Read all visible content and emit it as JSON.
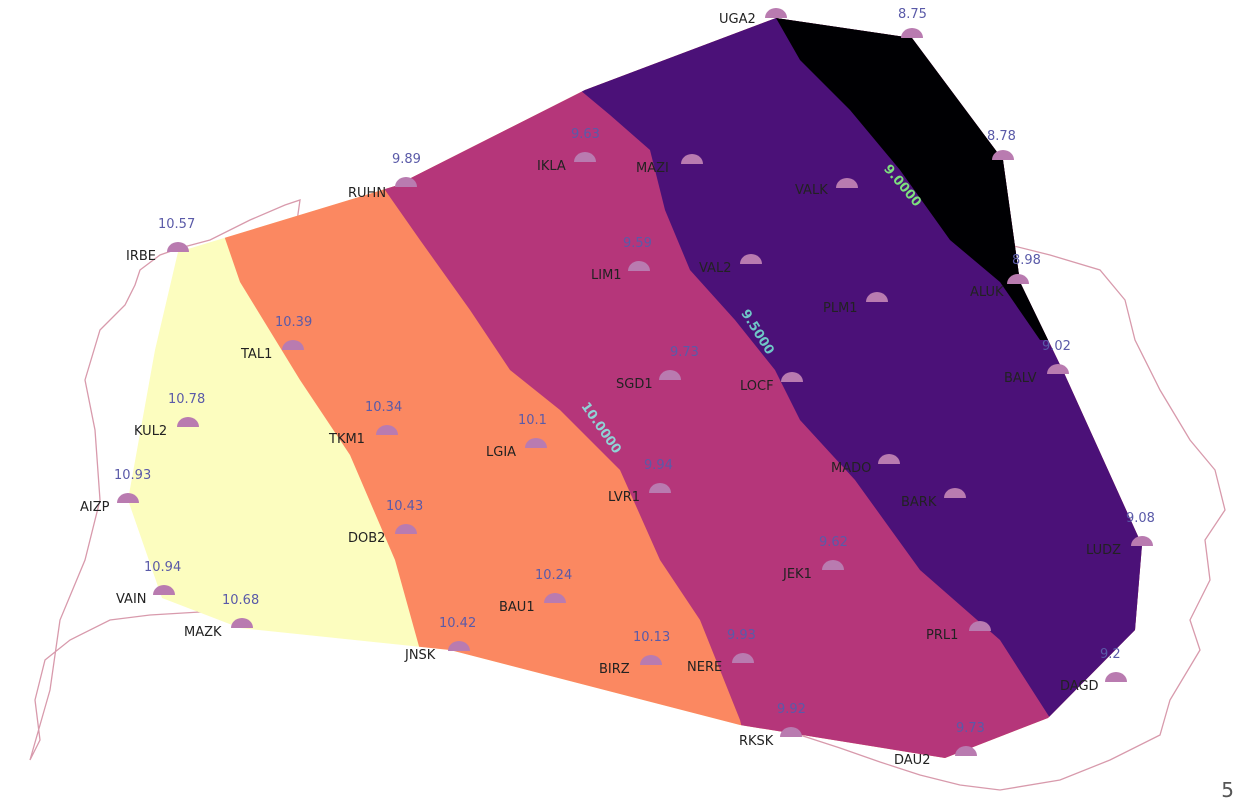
{
  "colors": {
    "band_lt_9": "#000003",
    "band_9_95": "#4b1178",
    "band_95_10": "#b5367a",
    "band_10_105": "#fb8861",
    "band_gt_105": "#fcfdbf",
    "border": "#d89aac",
    "station": "#b97bb0",
    "contour_9": "#7ee07e",
    "contour_95": "#6fc7c7",
    "contour_10": "#8fd3d6",
    "contour_105": "#7ee07e"
  },
  "contours": [
    {
      "text": "9.0000"
    },
    {
      "text": "9.5000"
    },
    {
      "text": "10.0000"
    },
    {
      "text": ""
    }
  ],
  "stations": [
    {
      "name": "UGA2",
      "value": ""
    },
    {
      "name": "",
      "value": "8.75"
    },
    {
      "name": "",
      "value": "8.78"
    },
    {
      "name": "VALK",
      "value": ""
    },
    {
      "name": "ALUK",
      "value": "8.98"
    },
    {
      "name": "MAZI",
      "value": ""
    },
    {
      "name": "IKLA",
      "value": "9.63"
    },
    {
      "name": "RUHN",
      "value": "9.89"
    },
    {
      "name": "IRBE",
      "value": "10.57"
    },
    {
      "name": "LIM1",
      "value": "9.59"
    },
    {
      "name": "VAL2",
      "value": ""
    },
    {
      "name": "PLM1",
      "value": ""
    },
    {
      "name": "TAL1",
      "value": "10.39"
    },
    {
      "name": "SGD1",
      "value": "9.73"
    },
    {
      "name": "LOCF",
      "value": ""
    },
    {
      "name": "BALV",
      "value": "9.02"
    },
    {
      "name": "KUL2",
      "value": "10.78"
    },
    {
      "name": "TKM1",
      "value": "10.34"
    },
    {
      "name": "LGIA",
      "value": "10.1"
    },
    {
      "name": "LVR1",
      "value": "9.94"
    },
    {
      "name": "MADO",
      "value": ""
    },
    {
      "name": "BARK",
      "value": ""
    },
    {
      "name": "AIZP",
      "value": "10.93"
    },
    {
      "name": "DOB2",
      "value": "10.43"
    },
    {
      "name": "JEK1",
      "value": "9.62"
    },
    {
      "name": "LUDZ",
      "value": "9.08"
    },
    {
      "name": "VAIN",
      "value": "10.94"
    },
    {
      "name": "MAZK",
      "value": "10.68"
    },
    {
      "name": "BAU1",
      "value": "10.24"
    },
    {
      "name": "JNSK",
      "value": "10.42"
    },
    {
      "name": "BIRZ",
      "value": "10.13"
    },
    {
      "name": "NERE",
      "value": "9.93"
    },
    {
      "name": "PRL1",
      "value": ""
    },
    {
      "name": "DAGD",
      "value": "9.2"
    },
    {
      "name": "RKSK",
      "value": "9.92"
    },
    {
      "name": "DAU2",
      "value": "9.73"
    }
  ],
  "page_number": "5"
}
